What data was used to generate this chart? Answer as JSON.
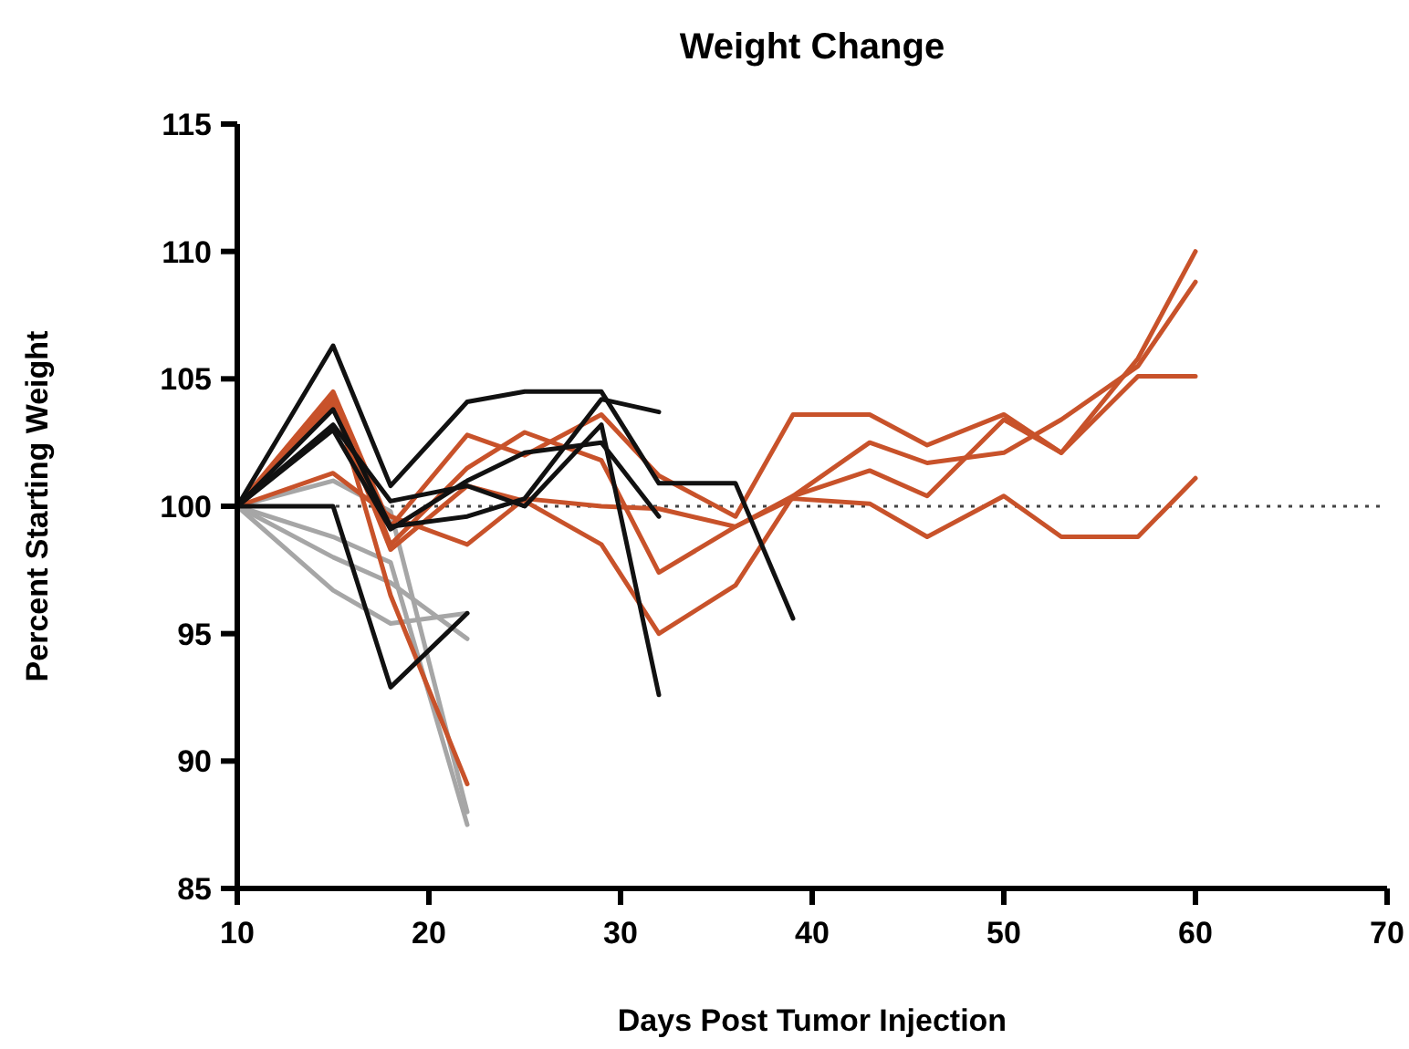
{
  "chart_data": {
    "type": "line",
    "title": "Weight Change",
    "xlabel": "Days Post Tumor Injection",
    "ylabel": "Percent Starting Weight",
    "xlim": [
      10,
      70
    ],
    "xticks": [
      10,
      20,
      30,
      40,
      50,
      60,
      70
    ],
    "ylim": [
      85,
      115
    ],
    "yticks": [
      85,
      90,
      95,
      100,
      105,
      110,
      115
    ],
    "marker": "none",
    "line_style": "solid",
    "ref_lines": [
      {
        "axis": "y",
        "value": 100,
        "line_style": "dotted",
        "color": "#444444"
      }
    ],
    "series": [
      {
        "color": "#a6a6a6",
        "x": [
          10,
          15,
          18,
          22
        ],
        "values": [
          100,
          101,
          99.8,
          88.0
        ]
      },
      {
        "color": "#a6a6a6",
        "x": [
          10,
          15,
          18,
          22
        ],
        "values": [
          100,
          98.8,
          97.8,
          87.5
        ]
      },
      {
        "color": "#a6a6a6",
        "x": [
          10,
          15,
          18,
          22
        ],
        "values": [
          100,
          96.7,
          95.4,
          95.8
        ]
      },
      {
        "color": "#a6a6a6",
        "x": [
          10,
          15,
          18,
          22
        ],
        "values": [
          100,
          98.0,
          97.0,
          94.8
        ]
      },
      {
        "color": "#c8522a",
        "x": [
          10,
          15,
          18,
          22,
          25,
          29,
          32,
          36,
          39,
          43,
          46,
          50,
          53,
          57,
          60
        ],
        "values": [
          100,
          104.5,
          99.2,
          102.8,
          102,
          103.6,
          101.2,
          99.6,
          103.6,
          103.6,
          102.4,
          103.6,
          102.1,
          105.1,
          105.1
        ]
      },
      {
        "color": "#c8522a",
        "x": [
          10,
          15,
          18,
          22,
          25,
          29,
          32,
          36,
          39,
          43,
          46,
          50,
          53,
          57,
          60
        ],
        "values": [
          100,
          104.2,
          98.5,
          101.5,
          102.9,
          101.8,
          97.4,
          99.2,
          100.4,
          102.5,
          101.7,
          102.1,
          103.4,
          105.5,
          108.8
        ]
      },
      {
        "color": "#c8522a",
        "x": [
          10,
          15,
          18,
          22,
          25,
          29,
          32,
          36,
          39,
          43,
          46,
          50,
          53,
          57,
          60
        ],
        "values": [
          100,
          104,
          98.3,
          100.8,
          100.2,
          98.5,
          95.0,
          96.9,
          100.4,
          101.4,
          100.4,
          103.4,
          102.1,
          105.8,
          110
        ]
      },
      {
        "color": "#c8522a",
        "x": [
          10,
          15,
          18,
          22,
          25,
          29,
          32,
          36,
          39,
          43,
          46,
          50,
          53,
          57,
          60
        ],
        "values": [
          100,
          101.3,
          99.6,
          98.5,
          100.3,
          100.0,
          99.9,
          99.2,
          100.3,
          100.1,
          98.8,
          100.4,
          98.8,
          98.8,
          101.1
        ]
      },
      {
        "color": "#c8522a",
        "x": [
          10,
          15,
          18,
          22
        ],
        "values": [
          100,
          104.3,
          96.5,
          89.1
        ]
      },
      {
        "color": "#111111",
        "x": [
          10,
          15,
          18,
          22,
          25,
          29,
          32,
          36,
          39
        ],
        "values": [
          100,
          106.3,
          100.8,
          104.1,
          104.5,
          104.5,
          100.9,
          100.9,
          95.6
        ]
      },
      {
        "color": "#111111",
        "x": [
          10,
          15,
          18,
          22,
          25,
          29,
          32
        ],
        "values": [
          100,
          103.8,
          99.2,
          99.6,
          100.3,
          104.2,
          103.7
        ]
      },
      {
        "color": "#111111",
        "x": [
          10,
          15,
          18,
          22,
          25,
          29,
          32
        ],
        "values": [
          100,
          103.2,
          100.2,
          100.8,
          100.0,
          103.2,
          92.6
        ]
      },
      {
        "color": "#111111",
        "x": [
          10,
          15,
          18,
          22,
          25,
          29,
          32
        ],
        "values": [
          100,
          103,
          99.1,
          101,
          102.1,
          102.5,
          99.6
        ]
      },
      {
        "color": "#111111",
        "x": [
          10,
          15,
          18,
          22
        ],
        "values": [
          100,
          100,
          92.9,
          95.8
        ]
      }
    ]
  }
}
